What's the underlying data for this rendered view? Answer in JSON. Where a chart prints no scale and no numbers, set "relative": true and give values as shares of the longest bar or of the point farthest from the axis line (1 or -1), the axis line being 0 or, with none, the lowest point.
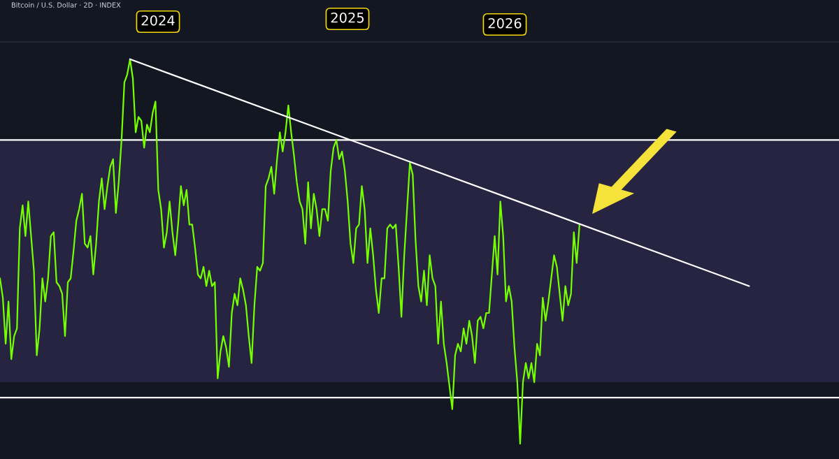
{
  "chart_data": {
    "type": "line",
    "title": "Bitcoin / U.S. Dollar · 2D · INDEX",
    "relative": true,
    "legend": false,
    "annotations": [
      "2024",
      "2025",
      "2026"
    ],
    "categories": [
      null,
      null,
      null,
      null,
      null,
      null,
      null,
      null,
      null,
      null,
      null,
      null,
      null,
      null,
      null,
      null,
      null,
      null,
      null,
      null,
      null,
      null,
      null,
      null,
      null,
      null,
      null,
      null,
      null,
      null,
      null,
      null,
      null,
      null,
      null,
      null,
      null,
      null,
      null,
      null,
      null,
      null,
      null,
      null,
      null,
      null,
      null,
      null,
      null,
      null,
      null,
      null,
      null,
      null,
      null,
      null,
      null,
      null,
      null,
      null,
      null,
      null,
      null,
      null,
      null,
      null,
      null,
      null,
      null,
      null,
      null,
      null,
      null,
      null,
      null,
      null,
      null,
      null,
      null,
      null,
      null,
      null,
      null,
      null,
      null,
      null,
      null,
      null,
      null,
      null,
      null,
      null,
      null,
      null,
      null,
      null,
      null,
      null,
      null,
      null,
      null,
      null,
      null,
      null,
      null,
      null,
      null,
      null,
      null,
      null,
      null,
      null,
      null,
      null,
      null,
      null,
      null,
      null,
      null,
      null,
      null,
      null,
      null,
      null,
      null,
      null,
      null,
      null,
      null,
      null,
      null,
      null,
      null,
      null,
      null,
      null,
      null,
      null,
      null,
      null,
      null,
      null,
      null,
      null,
      null,
      null,
      null,
      null,
      null,
      null,
      null,
      null,
      null,
      null,
      null,
      null,
      null,
      null,
      null,
      null,
      null,
      null,
      null,
      null,
      null,
      null,
      null,
      null,
      null,
      null,
      null,
      null,
      null,
      null,
      null,
      null,
      null,
      null,
      null,
      null,
      null,
      null,
      null,
      null,
      null,
      null,
      null,
      null,
      null,
      null,
      null,
      null,
      null,
      null,
      null,
      null,
      null,
      null,
      null,
      null,
      null,
      null,
      null,
      null,
      null,
      null,
      null,
      null,
      null,
      null,
      null,
      null,
      null,
      null,
      null,
      null,
      null,
      null,
      null,
      null,
      null,
      null,
      null,
      null,
      null,
      null,
      null,
      null,
      null,
      null,
      null,
      null,
      null,
      null,
      null,
      null,
      null,
      null,
      null,
      null,
      null,
      null,
      null,
      null,
      null,
      null,
      null,
      null,
      null,
      null,
      null,
      null,
      null,
      null,
      null,
      null,
      null,
      null,
      null,
      null,
      null,
      null,
      null,
      null,
      null,
      null
    ],
    "series": [
      {
        "color": "#76ff03",
        "values": [
          0.43,
          0.38,
          0.26,
          0.37,
          0.22,
          0.28,
          0.3,
          0.56,
          0.62,
          0.54,
          0.63,
          0.54,
          0.45,
          0.23,
          0.3,
          0.43,
          0.37,
          0.43,
          0.54,
          0.55,
          0.42,
          0.41,
          0.39,
          0.28,
          0.42,
          0.43,
          0.5,
          0.58,
          0.61,
          0.65,
          0.52,
          0.51,
          0.54,
          0.44,
          0.52,
          0.63,
          0.69,
          0.61,
          0.67,
          0.72,
          0.74,
          0.6,
          0.68,
          0.79,
          0.94,
          0.96,
          1,
          0.95,
          0.81,
          0.85,
          0.84,
          0.77,
          0.83,
          0.81,
          0.86,
          0.89,
          0.66,
          0.61,
          0.51,
          0.55,
          0.63,
          0.55,
          0.49,
          0.57,
          0.67,
          0.62,
          0.66,
          0.57,
          0.57,
          0.51,
          0.44,
          0.43,
          0.46,
          0.41,
          0.45,
          0.41,
          0.42,
          0.17,
          0.24,
          0.28,
          0.25,
          0.2,
          0.34,
          0.39,
          0.36,
          0.43,
          0.4,
          0.36,
          0.28,
          0.21,
          0.36,
          0.46,
          0.45,
          0.47,
          0.67,
          0.69,
          0.72,
          0.65,
          0.74,
          0.81,
          0.76,
          0.81,
          0.88,
          0.81,
          0.75,
          0.68,
          0.63,
          0.61,
          0.52,
          0.68,
          0.56,
          0.65,
          0.61,
          0.54,
          0.61,
          0.61,
          0.58,
          0.71,
          0.77,
          0.79,
          0.74,
          0.76,
          0.71,
          0.63,
          0.52,
          0.47,
          0.56,
          0.57,
          0.67,
          0.61,
          0.47,
          0.56,
          0.49,
          0.4,
          0.34,
          0.43,
          0.43,
          0.56,
          0.57,
          0.56,
          0.57,
          0.46,
          0.33,
          0.49,
          0.61,
          0.73,
          0.7,
          0.53,
          0.41,
          0.37,
          0.45,
          0.36,
          0.49,
          0.43,
          0.41,
          0.26,
          0.37,
          0.26,
          0.21,
          0.15,
          0.09,
          0.23,
          0.26,
          0.24,
          0.3,
          0.26,
          0.32,
          0.28,
          0.21,
          0.32,
          0.33,
          0.3,
          0.34,
          0.34,
          0.44,
          0.54,
          0.44,
          0.63,
          0.54,
          0.37,
          0.41,
          0.37,
          0.25,
          0.16,
          0,
          0.16,
          0.21,
          0.17,
          0.21,
          0.16,
          0.26,
          0.23,
          0.38,
          0.32,
          0.37,
          0.43,
          0.49,
          0.46,
          0.39,
          0.32,
          0.41,
          0.36,
          0.39,
          0.55,
          0.47,
          0.57,
          null,
          null,
          null,
          null,
          null,
          null,
          null,
          null,
          null,
          null,
          null,
          null,
          null,
          null,
          null,
          null,
          null,
          null,
          null,
          null,
          null,
          null,
          null,
          null,
          null,
          null,
          null,
          null,
          null,
          null,
          null,
          null,
          null,
          null,
          null,
          null,
          null,
          null,
          null,
          null,
          null,
          null,
          null,
          null,
          null,
          null,
          null,
          null,
          null,
          null,
          null,
          null,
          null,
          null,
          null,
          null,
          null,
          null,
          null,
          null
        ]
      },
      {
        "type": "line",
        "color": "#ffffff",
        "values": [
          null,
          null,
          null,
          null,
          null,
          null,
          null,
          null,
          null,
          null,
          null,
          null,
          null,
          null,
          null,
          null,
          null,
          null,
          null,
          null,
          null,
          null,
          null,
          null,
          null,
          null,
          null,
          null,
          null,
          null,
          null,
          null,
          null,
          null,
          null,
          null,
          null,
          null,
          null,
          null,
          null,
          null,
          null,
          null,
          null,
          null,
          1,
          null,
          null,
          null,
          null,
          null,
          null,
          null,
          null,
          null,
          null,
          null,
          null,
          null,
          null,
          null,
          null,
          null,
          null,
          null,
          null,
          null,
          null,
          null,
          null,
          null,
          null,
          null,
          null,
          null,
          null,
          null,
          null,
          null,
          null,
          null,
          null,
          null,
          null,
          null,
          null,
          null,
          null,
          null,
          null,
          null,
          null,
          null,
          null,
          null,
          null,
          null,
          null,
          null,
          null,
          null,
          null,
          null,
          null,
          null,
          null,
          null,
          null,
          null,
          null,
          null,
          null,
          null,
          null,
          null,
          null,
          null,
          null,
          null,
          null,
          null,
          null,
          null,
          null,
          null,
          null,
          null,
          null,
          null,
          null,
          null,
          null,
          null,
          null,
          null,
          null,
          null,
          null,
          null,
          null,
          null,
          null,
          null,
          null,
          null,
          null,
          null,
          null,
          null,
          null,
          null,
          null,
          null,
          null,
          null,
          null,
          null,
          null,
          null,
          null,
          null,
          null,
          null,
          null,
          null,
          null,
          null,
          null,
          null,
          null,
          null,
          null,
          null,
          null,
          null,
          null,
          null,
          null,
          null,
          null,
          null,
          null,
          null,
          null,
          null,
          null,
          null,
          null,
          null,
          null,
          null,
          null,
          null,
          null,
          null,
          null,
          null,
          null,
          null,
          null,
          null,
          null,
          null,
          null,
          null,
          null,
          null,
          null,
          null,
          null,
          null,
          null,
          null,
          null,
          null,
          null,
          null,
          null,
          null,
          null,
          null,
          null,
          null,
          null,
          null,
          null,
          null,
          null,
          null,
          null,
          null,
          null,
          null,
          null,
          null,
          null,
          null,
          null,
          null,
          null,
          null,
          null,
          null,
          null,
          null,
          null,
          null,
          null,
          null,
          null,
          null,
          null,
          null,
          null,
          null,
          null,
          null,
          null,
          null,
          null,
          null,
          null,
          null,
          null,
          0.41
        ]
      }
    ],
    "ref_lines": [
      {
        "axis": "y",
        "value": 0.79,
        "color": "#ffffff"
      },
      {
        "axis": "y",
        "value": 0.12,
        "color": "#ffffff"
      }
    ],
    "bands": [
      {
        "axis": "y",
        "from": 0.16,
        "to": 0.79,
        "color": "#262440"
      }
    ]
  }
}
